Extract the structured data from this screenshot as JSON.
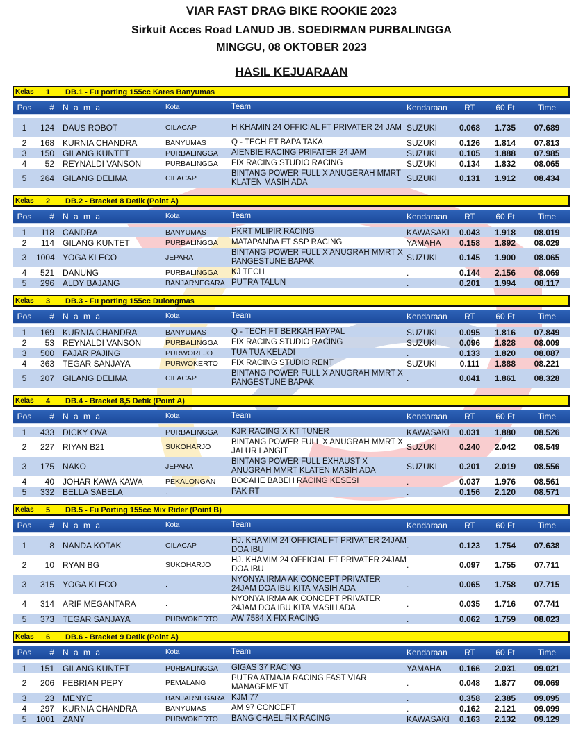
{
  "header": {
    "title": "VIAR FAST DRAG BIKE ROOKIE 2023",
    "venue": "Sirkuit Acces Road LANUD JB. SOEDIRMAN PURBALINGGA",
    "date": "MINGGU, 08 OKTOBER 2023",
    "subtitle": "HASIL KEJUARAAN"
  },
  "columns": {
    "pos": "Pos",
    "num": "#",
    "nama": "N a m a",
    "kota": "Kota",
    "team": "Team",
    "kendaraan": "Kendaraan",
    "rt": "RT",
    "sixty": "60 Ft",
    "time": "Time"
  },
  "kelas_label": "Kelas",
  "colors": {
    "kelas_bar": "#fff200",
    "header_bar": "#1c4a9c",
    "row_alt": "#c3d4ee"
  },
  "sections": [
    {
      "kelas": "1",
      "name": "DB.1 - Fu porting 155cc Kares Banyumas",
      "rows": [
        {
          "pos": "1",
          "num": "124",
          "nama": "DAUS ROBOT",
          "kota": "CILACAP",
          "team": "H KHAMIN 24 OFFICIAL FT PRIVATER 24 JAM",
          "kend": "SUZUKI",
          "rt": "0.068",
          "sf": "1.735",
          "time": "07.689",
          "tall": true
        },
        {
          "pos": "2",
          "num": "168",
          "nama": "KURNIA CHANDRA",
          "kota": "BANYUMAS",
          "team": "Q - TECH FT BAPA TAKA",
          "kend": "SUZUKI",
          "rt": "0.126",
          "sf": "1.814",
          "time": "07.813"
        },
        {
          "pos": "3",
          "num": "150",
          "nama": "GILANG KUNTET",
          "kota": "PURBALINGGA",
          "team": "AIENBIE RACING PRIFATER 24 JAM",
          "kend": "SUZUKI",
          "rt": "0.105",
          "sf": "1.888",
          "time": "07.985"
        },
        {
          "pos": "4",
          "num": "52",
          "nama": "REYNALDI VANSON",
          "kota": "PURBALINGGA",
          "team": "FIX RACING STUDIO RACING",
          "kend": "SUZUKI",
          "rt": "0.134",
          "sf": "1.832",
          "time": "08.065"
        },
        {
          "pos": "5",
          "num": "264",
          "nama": "GILANG DELIMA",
          "kota": "CILACAP",
          "team": "BINTANG POWER FULL X ANUGERAH MMRT KLATEN MASIH ADA",
          "kend": "SUZUKI",
          "rt": "0.131",
          "sf": "1.912",
          "time": "08.434",
          "tall": true
        }
      ]
    },
    {
      "kelas": "2",
      "name": "DB.2 - Bracket 8 Detik (Point A)",
      "rows": [
        {
          "pos": "1",
          "num": "118",
          "nama": "CANDRA",
          "kota": "BANYUMAS",
          "team": "PKRT MLIPIR RACING",
          "kend": "KAWASAKI",
          "rt": "0.043",
          "sf": "1.918",
          "time": "08.019"
        },
        {
          "pos": "2",
          "num": "114",
          "nama": "GILANG KUNTET",
          "kota": "PURBALINGGA",
          "team": "MATAPANDA FT SSP RACING",
          "kend": "YAMAHA",
          "rt": "0.158",
          "sf": "1.892",
          "time": "08.029"
        },
        {
          "pos": "3",
          "num": "1004",
          "nama": "YOGA KLECO",
          "kota": "JEPARA",
          "team": "BINTANG POWER FULL X ANUGRAH MMRT X PANGESTUNE BAPAK",
          "kend": "SUZUKI",
          "rt": "0.145",
          "sf": "1.900",
          "time": "08.065",
          "tall": true
        },
        {
          "pos": "4",
          "num": "521",
          "nama": "DANUNG",
          "kota": "PURBALINGGA",
          "team": "KJ TECH",
          "kend": ".",
          "rt": "0.144",
          "sf": "2.156",
          "time": "08.069"
        },
        {
          "pos": "5",
          "num": "296",
          "nama": "ALDY BAJANG",
          "kota": "BANJARNEGARA",
          "team": "PUTRA TALUN",
          "kend": ".",
          "rt": "0.201",
          "sf": "1.994",
          "time": "08.117"
        }
      ]
    },
    {
      "kelas": "3",
      "name": "DB.3 - Fu porting 155cc Dulongmas",
      "rows": [
        {
          "pos": "1",
          "num": "169",
          "nama": "KURNIA CHANDRA",
          "kota": "BANYUMAS",
          "team": "Q - TECH FT BERKAH PAYPAL",
          "kend": "SUZUKI",
          "rt": "0.095",
          "sf": "1.816",
          "time": "07.849"
        },
        {
          "pos": "2",
          "num": "53",
          "nama": "REYNALDI VANSON",
          "kota": "PURBALINGGA",
          "team": "FIX RACING STUDIO RACING",
          "kend": "SUZUKI",
          "rt": "0.096",
          "sf": "1.828",
          "time": "08.009"
        },
        {
          "pos": "3",
          "num": "500",
          "nama": "FAJAR PAJING",
          "kota": "PURWOREJO",
          "team": "TUA TUA KELADI",
          "kend": ".",
          "rt": "0.133",
          "sf": "1.820",
          "time": "08.087"
        },
        {
          "pos": "4",
          "num": "363",
          "nama": "TEGAR SANJAYA",
          "kota": "PURWOKERTO",
          "team": "FIX RACING STUDIO RENT",
          "kend": "SUZUKI",
          "rt": "0.111",
          "sf": "1.888",
          "time": "08.221"
        },
        {
          "pos": "5",
          "num": "207",
          "nama": "GILANG DELIMA",
          "kota": "CILACAP",
          "team": "BINTANG POWER FULL X ANUGRAH MMRT X PANGESTUNE BAPAK",
          "kend": ".",
          "rt": "0.041",
          "sf": "1.861",
          "time": "08.328",
          "tall": true
        }
      ]
    },
    {
      "kelas": "4",
      "name": "DB.4 - Bracket 8,5 Detik (Point A)",
      "rows": [
        {
          "pos": "1",
          "num": "433",
          "nama": "DICKY OVA",
          "kota": "PURBALINGGA",
          "team": "KJR RACING X KT TUNER",
          "kend": "KAWASAKI",
          "rt": "0.031",
          "sf": "1.880",
          "time": "08.526"
        },
        {
          "pos": "2",
          "num": "227",
          "nama": "RIYAN B21",
          "kota": "SUKOHARJO",
          "team": "BINTANG POWER FULL X ANUGRAH MMRT X JALUR LANGIT",
          "kend": "SUZUKI",
          "rt": "0.240",
          "sf": "2.042",
          "time": "08.549",
          "tall": true
        },
        {
          "pos": "3",
          "num": "175",
          "nama": "NAKO",
          "kota": "JEPARA",
          "team": "BINTANG POWER FULL EXHAUST X ANUGRAH MMRT KLATEN MASIH ADA",
          "kend": "SUZUKI",
          "rt": "0.201",
          "sf": "2.019",
          "time": "08.556",
          "tall": true
        },
        {
          "pos": "4",
          "num": "40",
          "nama": "JOHAR KAWA KAWA",
          "kota": "PEKALONGAN",
          "team": "BOCAHE BABEH RACING KESESI",
          "kend": ".",
          "rt": "0.037",
          "sf": "1.976",
          "time": "08.561"
        },
        {
          "pos": "5",
          "num": "332",
          "nama": "BELLA SABELA",
          "kota": ".",
          "team": "PAK RT",
          "kend": ".",
          "rt": "0.156",
          "sf": "2.120",
          "time": "08.571"
        }
      ]
    },
    {
      "kelas": "5",
      "name": "DB.5 - Fu Porting 155cc Mix Rider (Point B)",
      "rows": [
        {
          "pos": "1",
          "num": "8",
          "nama": "NANDA KOTAK",
          "kota": "CILACAP",
          "team": "HJ. KHAMIM 24 OFFICIAL FT PRIVATER 24JAM DOA IBU",
          "kend": ".",
          "rt": "0.123",
          "sf": "1.754",
          "time": "07.638",
          "tall": true
        },
        {
          "pos": "2",
          "num": "10",
          "nama": "RYAN BG",
          "kota": "SUKOHARJO",
          "team": "HJ. KHAMIM 24 OFFICIAL FT PRIVATER 24JAM DOA IBU",
          "kend": ".",
          "rt": "0.097",
          "sf": "1.755",
          "time": "07.711",
          "tall": true
        },
        {
          "pos": "3",
          "num": "315",
          "nama": "YOGA KLECO",
          "kota": ".",
          "team": "NYONYA IRMA AK CONCEPT PRIVATER 24JAM DOA IBU KITA MASIH ADA",
          "kend": ".",
          "rt": "0.065",
          "sf": "1.758",
          "time": "07.715",
          "tall": true
        },
        {
          "pos": "4",
          "num": "314",
          "nama": "ARIF MEGANTARA",
          "kota": ".",
          "team": "NYONYA IRMA AK CONCEPT PRIVATER 24JAM DOA IBU KITA MASIH ADA",
          "kend": ".",
          "rt": "0.035",
          "sf": "1.716",
          "time": "07.741",
          "tall": true
        },
        {
          "pos": "5",
          "num": "373",
          "nama": "TEGAR SANJAYA",
          "kota": "PURWOKERTO",
          "team": "AW 7584 X FIX RACING",
          "kend": ".",
          "rt": "0.062",
          "sf": "1.759",
          "time": "08.023"
        }
      ]
    },
    {
      "kelas": "6",
      "name": "DB.6 - Bracket 9 Detik (Point A)",
      "rows": [
        {
          "pos": "1",
          "num": "151",
          "nama": "GILANG KUNTET",
          "kota": "PURBALINGGA",
          "team": "GIGAS 37 RACING",
          "kend": "YAMAHA",
          "rt": "0.166",
          "sf": "2.031",
          "time": "09.021"
        },
        {
          "pos": "2",
          "num": "206",
          "nama": "FEBRIAN PEPY",
          "kota": "PEMALANG",
          "team": "PUTRA ATMAJA RACING FAST VIAR MANAGEMENT",
          "kend": ".",
          "rt": "0.048",
          "sf": "1.877",
          "time": "09.069",
          "tall": true
        },
        {
          "pos": "3",
          "num": "23",
          "nama": "MENYE",
          "kota": "BANJARNEGARA",
          "team": "KJM 77",
          "kend": ".",
          "rt": "0.358",
          "sf": "2.385",
          "time": "09.095"
        },
        {
          "pos": "4",
          "num": "297",
          "nama": "KURNIA CHANDRA",
          "kota": "BANYUMAS",
          "team": "AM 97 CONCEPT",
          "kend": ".",
          "rt": "0.162",
          "sf": "2.121",
          "time": "09.099"
        },
        {
          "pos": "5",
          "num": "1001",
          "nama": "ZANY",
          "kota": "PURWOKERTO",
          "team": "BANG CHAEL FIX RACING",
          "kend": "KAWASAKI",
          "rt": "0.163",
          "sf": "2.132",
          "time": "09.129"
        }
      ]
    }
  ]
}
